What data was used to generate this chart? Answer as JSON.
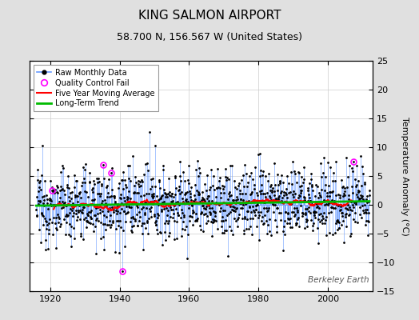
{
  "title": "KING SALMON AIRPORT",
  "subtitle": "58.700 N, 156.567 W (United States)",
  "ylabel": "Temperature Anomaly (°C)",
  "watermark": "Berkeley Earth",
  "year_start": 1916,
  "year_end": 2012,
  "ylim": [
    -15,
    25
  ],
  "yticks": [
    -15,
    -10,
    -5,
    0,
    5,
    10,
    15,
    20,
    25
  ],
  "xticks": [
    1920,
    1940,
    1960,
    1980,
    2000
  ],
  "bg_color": "#e0e0e0",
  "plot_bg_color": "#ffffff",
  "raw_line_color": "#6699ff",
  "raw_dot_color": "#000000",
  "ma_color": "#ff0000",
  "trend_color": "#00bb00",
  "qc_color": "#ff00ff",
  "grid_color": "#cccccc",
  "seed": 12345,
  "title_fontsize": 11,
  "subtitle_fontsize": 9,
  "tick_labelsize": 8,
  "ylabel_fontsize": 8
}
